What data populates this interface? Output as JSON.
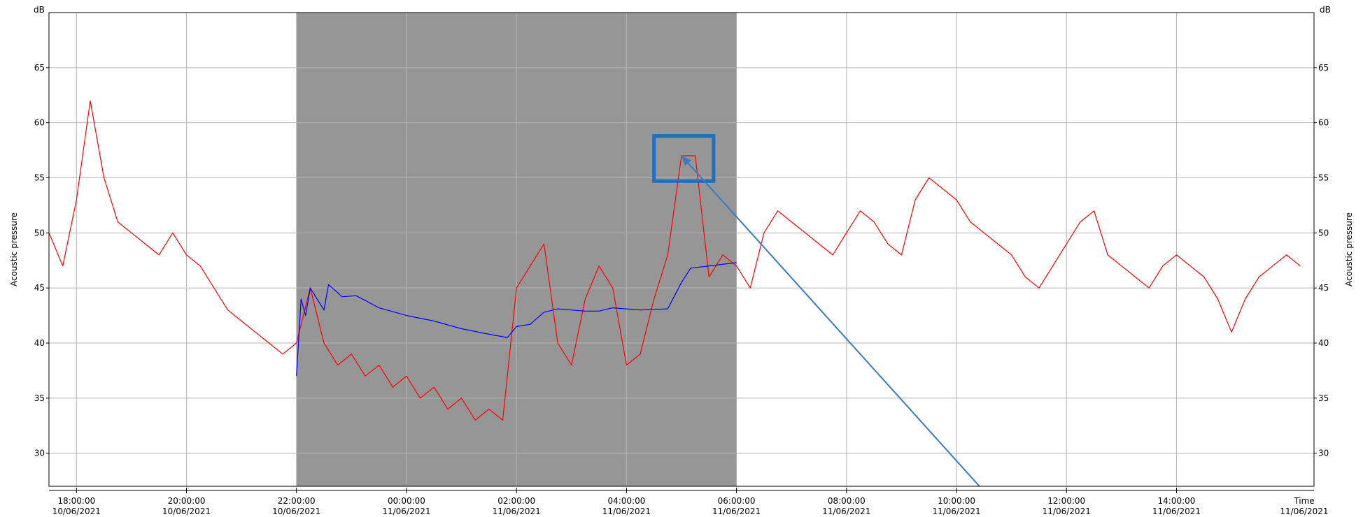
{
  "chart_data": {
    "type": "line",
    "y_unit_left": "dB",
    "y_unit_right": "dB",
    "ylabel_left": "Acoustic pressure",
    "ylabel_right": "Acoustic pressure",
    "xlabel": "Time",
    "ylim": [
      27,
      70
    ],
    "y_ticks": [
      30,
      35,
      40,
      45,
      50,
      55,
      60,
      65
    ],
    "x_range": [
      "2021-06-10 17:30",
      "2021-06-11 16:30"
    ],
    "x_ticks": [
      {
        "time": "18:00:00",
        "date": "10/06/2021",
        "at": "2021-06-10 18:00"
      },
      {
        "time": "20:00:00",
        "date": "10/06/2021",
        "at": "2021-06-10 20:00"
      },
      {
        "time": "22:00:00",
        "date": "10/06/2021",
        "at": "2021-06-10 22:00"
      },
      {
        "time": "00:00:00",
        "date": "11/06/2021",
        "at": "2021-06-11 00:00"
      },
      {
        "time": "02:00:00",
        "date": "11/06/2021",
        "at": "2021-06-11 02:00"
      },
      {
        "time": "04:00:00",
        "date": "11/06/2021",
        "at": "2021-06-11 04:00"
      },
      {
        "time": "06:00:00",
        "date": "11/06/2021",
        "at": "2021-06-11 06:00"
      },
      {
        "time": "08:00:00",
        "date": "11/06/2021",
        "at": "2021-06-11 08:00"
      },
      {
        "time": "10:00:00",
        "date": "11/06/2021",
        "at": "2021-06-11 10:00"
      },
      {
        "time": "12:00:00",
        "date": "11/06/2021",
        "at": "2021-06-11 12:00"
      },
      {
        "time": "14:00:00",
        "date": "11/06/2021",
        "at": "2021-06-11 14:00"
      }
    ],
    "last_tick_date": "11/06/2021",
    "grid": true,
    "night_period": {
      "start": "2021-06-10 22:00",
      "end": "2021-06-11 06:00",
      "color": "#969696"
    },
    "series": [
      {
        "color": "#ff0000",
        "points": [
          [
            "2021-06-10 17:30",
            50
          ],
          [
            "2021-06-10 17:45",
            47
          ],
          [
            "2021-06-10 18:00",
            53
          ],
          [
            "2021-06-10 18:15",
            62
          ],
          [
            "2021-06-10 18:30",
            55
          ],
          [
            "2021-06-10 18:45",
            51
          ],
          [
            "2021-06-10 19:00",
            50
          ],
          [
            "2021-06-10 19:15",
            49
          ],
          [
            "2021-06-10 19:30",
            48
          ],
          [
            "2021-06-10 19:45",
            50
          ],
          [
            "2021-06-10 20:00",
            48
          ],
          [
            "2021-06-10 20:15",
            47
          ],
          [
            "2021-06-10 20:30",
            45
          ],
          [
            "2021-06-10 20:45",
            43
          ],
          [
            "2021-06-10 21:00",
            42
          ],
          [
            "2021-06-10 21:15",
            41
          ],
          [
            "2021-06-10 21:30",
            40
          ],
          [
            "2021-06-10 21:45",
            39
          ],
          [
            "2021-06-10 22:00",
            40
          ],
          [
            "2021-06-10 22:15",
            45
          ],
          [
            "2021-06-10 22:30",
            40
          ],
          [
            "2021-06-10 22:45",
            38
          ],
          [
            "2021-06-10 23:00",
            39
          ],
          [
            "2021-06-10 23:15",
            37
          ],
          [
            "2021-06-10 23:30",
            38
          ],
          [
            "2021-06-10 23:45",
            36
          ],
          [
            "2021-06-11 00:00",
            37
          ],
          [
            "2021-06-11 00:15",
            35
          ],
          [
            "2021-06-11 00:30",
            36
          ],
          [
            "2021-06-11 00:45",
            34
          ],
          [
            "2021-06-11 01:00",
            35
          ],
          [
            "2021-06-11 01:15",
            33
          ],
          [
            "2021-06-11 01:30",
            34
          ],
          [
            "2021-06-11 01:45",
            33
          ],
          [
            "2021-06-11 02:00",
            45
          ],
          [
            "2021-06-11 02:15",
            47
          ],
          [
            "2021-06-11 02:30",
            49
          ],
          [
            "2021-06-11 02:45",
            40
          ],
          [
            "2021-06-11 03:00",
            38
          ],
          [
            "2021-06-11 03:15",
            44
          ],
          [
            "2021-06-11 03:30",
            47
          ],
          [
            "2021-06-11 03:45",
            45
          ],
          [
            "2021-06-11 04:00",
            38
          ],
          [
            "2021-06-11 04:15",
            39
          ],
          [
            "2021-06-11 04:30",
            44
          ],
          [
            "2021-06-11 04:45",
            48
          ],
          [
            "2021-06-11 05:00",
            57
          ],
          [
            "2021-06-11 05:15",
            57
          ],
          [
            "2021-06-11 05:30",
            46
          ],
          [
            "2021-06-11 05:45",
            48
          ],
          [
            "2021-06-11 06:00",
            47
          ],
          [
            "2021-06-11 06:15",
            45
          ],
          [
            "2021-06-11 06:30",
            50
          ],
          [
            "2021-06-11 06:45",
            52
          ],
          [
            "2021-06-11 07:00",
            51
          ],
          [
            "2021-06-11 07:15",
            50
          ],
          [
            "2021-06-11 07:30",
            49
          ],
          [
            "2021-06-11 07:45",
            48
          ],
          [
            "2021-06-11 08:00",
            50
          ],
          [
            "2021-06-11 08:15",
            52
          ],
          [
            "2021-06-11 08:30",
            51
          ],
          [
            "2021-06-11 08:45",
            49
          ],
          [
            "2021-06-11 09:00",
            48
          ],
          [
            "2021-06-11 09:15",
            53
          ],
          [
            "2021-06-11 09:30",
            55
          ],
          [
            "2021-06-11 09:45",
            54
          ],
          [
            "2021-06-11 10:00",
            53
          ],
          [
            "2021-06-11 10:15",
            51
          ],
          [
            "2021-06-11 10:30",
            50
          ],
          [
            "2021-06-11 10:45",
            49
          ],
          [
            "2021-06-11 11:00",
            48
          ],
          [
            "2021-06-11 11:15",
            46
          ],
          [
            "2021-06-11 11:30",
            45
          ],
          [
            "2021-06-11 11:45",
            47
          ],
          [
            "2021-06-11 12:00",
            49
          ],
          [
            "2021-06-11 12:15",
            51
          ],
          [
            "2021-06-11 12:30",
            52
          ],
          [
            "2021-06-11 12:45",
            48
          ],
          [
            "2021-06-11 13:00",
            47
          ],
          [
            "2021-06-11 13:15",
            46
          ],
          [
            "2021-06-11 13:30",
            45
          ],
          [
            "2021-06-11 13:45",
            47
          ],
          [
            "2021-06-11 14:00",
            48
          ],
          [
            "2021-06-11 14:15",
            47
          ],
          [
            "2021-06-11 14:30",
            46
          ],
          [
            "2021-06-11 14:45",
            44
          ],
          [
            "2021-06-11 15:00",
            41
          ],
          [
            "2021-06-11 15:15",
            44
          ],
          [
            "2021-06-11 15:30",
            46
          ],
          [
            "2021-06-11 15:45",
            47
          ],
          [
            "2021-06-11 16:00",
            48
          ],
          [
            "2021-06-11 16:15",
            47
          ]
        ]
      },
      {
        "color": "#0000ff",
        "points": [
          [
            "2021-06-10 22:00",
            37
          ],
          [
            "2021-06-10 22:05",
            44
          ],
          [
            "2021-06-10 22:10",
            42.5
          ],
          [
            "2021-06-10 22:15",
            45
          ],
          [
            "2021-06-10 22:30",
            43
          ],
          [
            "2021-06-10 22:35",
            45.3
          ],
          [
            "2021-06-10 22:50",
            44.2
          ],
          [
            "2021-06-10 23:05",
            44.3
          ],
          [
            "2021-06-10 23:30",
            43.2
          ],
          [
            "2021-06-11 00:00",
            42.5
          ],
          [
            "2021-06-11 00:30",
            42.0
          ],
          [
            "2021-06-11 01:00",
            41.3
          ],
          [
            "2021-06-11 01:30",
            40.8
          ],
          [
            "2021-06-11 01:50",
            40.5
          ],
          [
            "2021-06-11 02:00",
            41.5
          ],
          [
            "2021-06-11 02:15",
            41.7
          ],
          [
            "2021-06-11 02:30",
            42.8
          ],
          [
            "2021-06-11 02:45",
            43.1
          ],
          [
            "2021-06-11 03:15",
            42.9
          ],
          [
            "2021-06-11 03:30",
            42.9
          ],
          [
            "2021-06-11 03:45",
            43.2
          ],
          [
            "2021-06-11 04:15",
            43.0
          ],
          [
            "2021-06-11 04:45",
            43.1
          ],
          [
            "2021-06-11 05:00",
            45.5
          ],
          [
            "2021-06-11 05:10",
            46.8
          ],
          [
            "2021-06-11 05:30",
            47.0
          ],
          [
            "2021-06-11 06:00",
            47.3
          ]
        ]
      }
    ],
    "annotations": [
      {
        "type": "box",
        "color": "#1f6fbf",
        "x_range": [
          "2021-06-11 04:30",
          "2021-06-11 05:35"
        ],
        "y_range": [
          54.7,
          58.8
        ]
      },
      {
        "type": "arrow",
        "color": "#3a78c9",
        "from": [
          "2021-06-11 10:25",
          27
        ],
        "to": [
          "2021-06-11 05:00",
          57
        ]
      }
    ]
  }
}
